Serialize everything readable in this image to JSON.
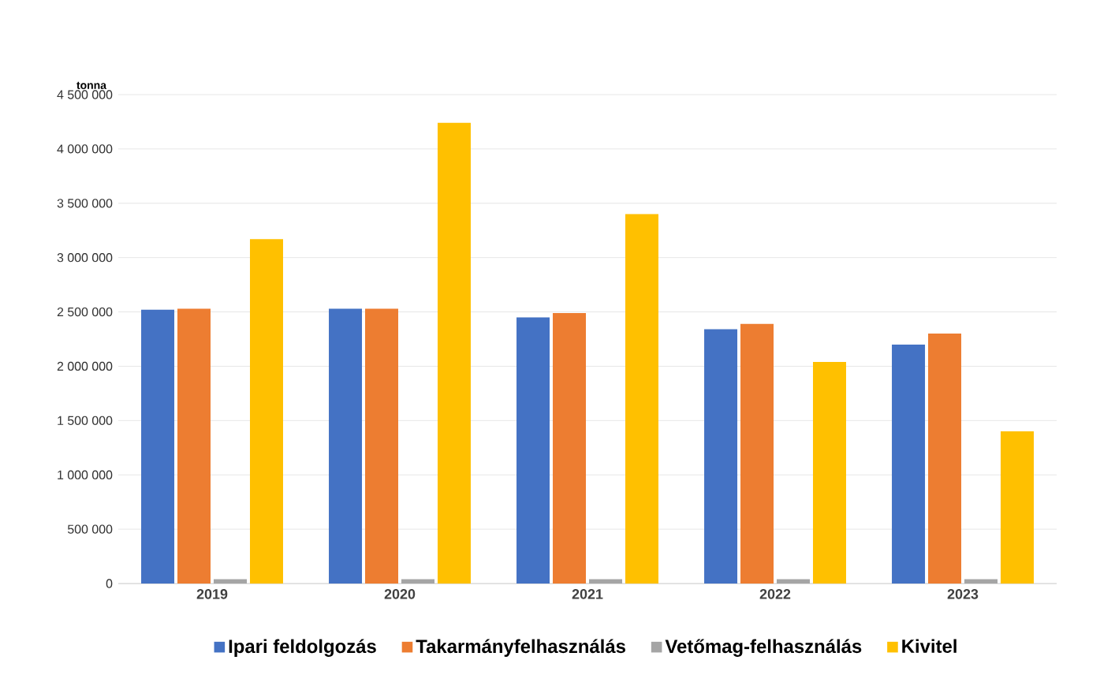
{
  "chart_data": {
    "type": "bar",
    "ylabel": "tonna",
    "categories": [
      "2019",
      "2020",
      "2021",
      "2022",
      "2023"
    ],
    "series": [
      {
        "name": "Ipari feldolgozás",
        "color": "#4472c4",
        "values": [
          2520000,
          2530000,
          2450000,
          2340000,
          2200000
        ]
      },
      {
        "name": "Takarmányfelhasználás",
        "color": "#ed7d31",
        "values": [
          2530000,
          2530000,
          2490000,
          2390000,
          2300000
        ]
      },
      {
        "name": "Vetőmag-felhasználás",
        "color": "#a5a5a5",
        "values": [
          40000,
          40000,
          40000,
          40000,
          40000
        ]
      },
      {
        "name": "Kivitel",
        "color": "#ffc000",
        "values": [
          3170000,
          4240000,
          3400000,
          2040000,
          1400000
        ]
      }
    ],
    "ylim": [
      0,
      4500000
    ],
    "yticks": [
      0,
      {
        "value": 500000,
        "label": "500 000"
      },
      {
        "value": 1000000,
        "label": "1 000 000"
      },
      {
        "value": 1500000,
        "label": "1 500 000"
      },
      {
        "value": 2000000,
        "label": "2 000 000"
      },
      {
        "value": 2500000,
        "label": "2 500 000"
      },
      {
        "value": 3000000,
        "label": "3 000 000"
      },
      {
        "value": 3500000,
        "label": "3 500 000"
      },
      {
        "value": 4000000,
        "label": "4 000 000"
      },
      {
        "value": 4500000,
        "label": "4 500 000"
      }
    ],
    "grid": "y",
    "legend": "bottom"
  }
}
